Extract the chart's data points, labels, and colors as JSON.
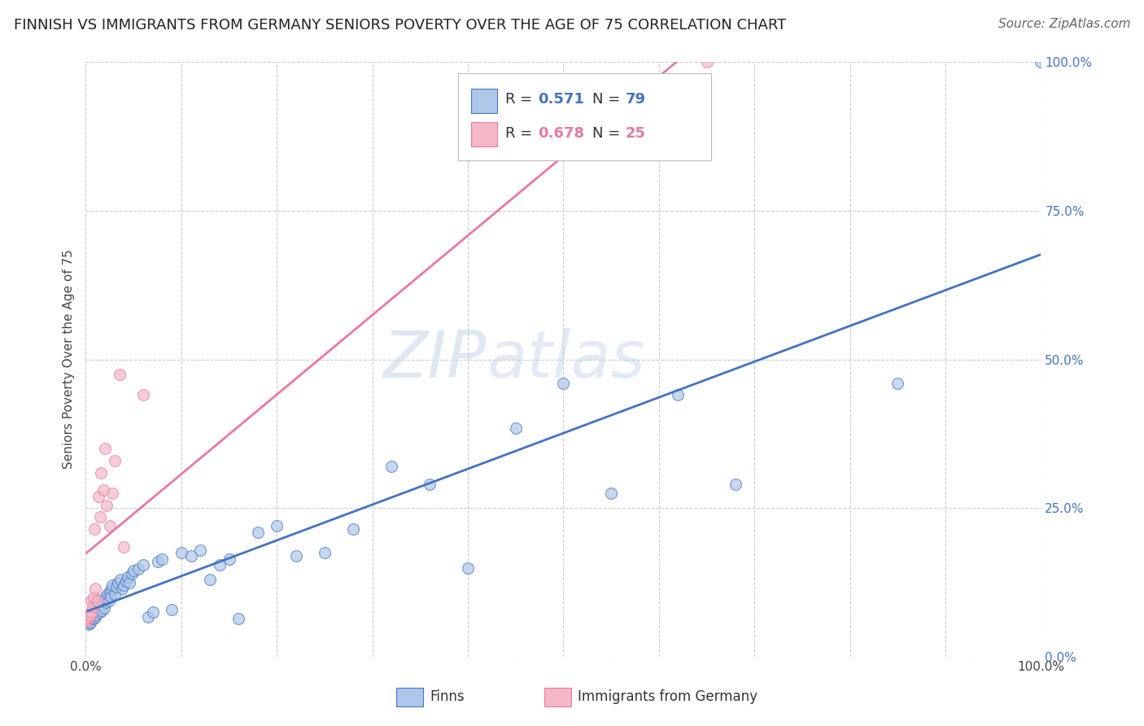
{
  "title": "FINNISH VS IMMIGRANTS FROM GERMANY SENIORS POVERTY OVER THE AGE OF 75 CORRELATION CHART",
  "source": "Source: ZipAtlas.com",
  "ylabel": "Seniors Poverty Over the Age of 75",
  "xlim": [
    0,
    1
  ],
  "ylim": [
    0,
    1
  ],
  "watermark_zip": "ZIP",
  "watermark_atlas": "atlas",
  "finns_color": "#aec6e8",
  "germany_color": "#f4b8c8",
  "finns_line_color": "#4472c4",
  "germany_line_color": "#e87a9a",
  "finns_R": 0.571,
  "finns_N": 79,
  "germany_R": 0.678,
  "germany_N": 25,
  "legend_label_finns": "Finns",
  "legend_label_germany": "Immigrants from Germany",
  "ytick_labels": [
    "0.0%",
    "25.0%",
    "50.0%",
    "75.0%",
    "100.0%"
  ],
  "ytick_values": [
    0.0,
    0.25,
    0.5,
    0.75,
    1.0
  ],
  "xtick_labels": [
    "0.0%",
    "",
    "",
    "",
    "",
    "",
    "",
    "",
    "",
    "",
    "100.0%"
  ],
  "xtick_values": [
    0.0,
    0.1,
    0.2,
    0.3,
    0.4,
    0.5,
    0.6,
    0.7,
    0.8,
    0.9,
    1.0
  ],
  "finns_x": [
    0.002,
    0.003,
    0.004,
    0.005,
    0.005,
    0.006,
    0.006,
    0.007,
    0.007,
    0.008,
    0.008,
    0.009,
    0.009,
    0.01,
    0.01,
    0.01,
    0.01,
    0.011,
    0.011,
    0.012,
    0.012,
    0.013,
    0.013,
    0.014,
    0.015,
    0.015,
    0.016,
    0.017,
    0.018,
    0.019,
    0.02,
    0.021,
    0.022,
    0.023,
    0.024,
    0.025,
    0.026,
    0.027,
    0.028,
    0.03,
    0.032,
    0.034,
    0.036,
    0.038,
    0.04,
    0.042,
    0.044,
    0.046,
    0.048,
    0.05,
    0.055,
    0.06,
    0.065,
    0.07,
    0.075,
    0.08,
    0.09,
    0.1,
    0.11,
    0.12,
    0.13,
    0.14,
    0.15,
    0.16,
    0.18,
    0.2,
    0.22,
    0.25,
    0.28,
    0.32,
    0.36,
    0.4,
    0.45,
    0.5,
    0.55,
    0.62,
    0.68,
    0.85,
    1.0
  ],
  "finns_y": [
    0.06,
    0.055,
    0.058,
    0.062,
    0.058,
    0.065,
    0.07,
    0.068,
    0.072,
    0.065,
    0.07,
    0.075,
    0.08,
    0.068,
    0.075,
    0.082,
    0.078,
    0.085,
    0.072,
    0.09,
    0.088,
    0.08,
    0.095,
    0.085,
    0.075,
    0.092,
    0.088,
    0.078,
    0.095,
    0.082,
    0.1,
    0.092,
    0.098,
    0.105,
    0.095,
    0.11,
    0.102,
    0.115,
    0.12,
    0.105,
    0.118,
    0.125,
    0.13,
    0.115,
    0.12,
    0.128,
    0.135,
    0.125,
    0.14,
    0.145,
    0.148,
    0.155,
    0.068,
    0.075,
    0.16,
    0.165,
    0.08,
    0.175,
    0.17,
    0.18,
    0.13,
    0.155,
    0.165,
    0.065,
    0.21,
    0.22,
    0.17,
    0.175,
    0.215,
    0.32,
    0.29,
    0.15,
    0.385,
    0.46,
    0.275,
    0.44,
    0.29,
    0.46,
    1.0
  ],
  "germany_x": [
    0.001,
    0.002,
    0.003,
    0.004,
    0.005,
    0.006,
    0.006,
    0.007,
    0.008,
    0.009,
    0.01,
    0.012,
    0.013,
    0.015,
    0.016,
    0.018,
    0.02,
    0.022,
    0.025,
    0.028,
    0.03,
    0.035,
    0.04,
    0.06,
    0.65
  ],
  "germany_y": [
    0.06,
    0.065,
    0.068,
    0.072,
    0.07,
    0.075,
    0.095,
    0.085,
    0.1,
    0.215,
    0.115,
    0.095,
    0.27,
    0.235,
    0.31,
    0.28,
    0.35,
    0.255,
    0.22,
    0.275,
    0.33,
    0.475,
    0.185,
    0.44,
    1.0
  ],
  "background_color": "#ffffff",
  "grid_color": "#cccccc",
  "title_fontsize": 13,
  "axis_label_fontsize": 11,
  "tick_fontsize": 11,
  "source_fontsize": 11
}
